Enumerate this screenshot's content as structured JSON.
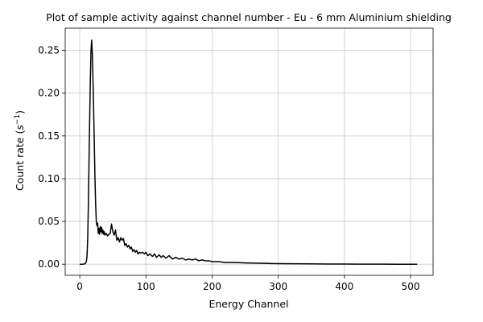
{
  "chart_data": {
    "type": "line",
    "title": "Plot of sample activity against channel number - Eu - 6 mm Aluminium shielding",
    "xlabel": "Energy Channel",
    "ylabel_main": "Count rate (",
    "ylabel_unit": "s",
    "ylabel_exp": "−1",
    "ylabel_end": ")",
    "xlim": [
      -22,
      534
    ],
    "ylim": [
      -0.013,
      0.276
    ],
    "grid": true,
    "x_ticks": [
      0,
      100,
      200,
      300,
      400,
      500
    ],
    "x_tick_labels": [
      "0",
      "100",
      "200",
      "300",
      "400",
      "500"
    ],
    "y_ticks": [
      0.0,
      0.05,
      0.1,
      0.15,
      0.2,
      0.25
    ],
    "y_tick_labels": [
      "0.00",
      "0.05",
      "0.10",
      "0.15",
      "0.20",
      "0.25"
    ],
    "series": [
      {
        "color": "#000000",
        "x": [
          0,
          5,
          8,
          10,
          11,
          12,
          13,
          14,
          15,
          16,
          17,
          18,
          19,
          20,
          21,
          22,
          23,
          24,
          25,
          26,
          27,
          28,
          29,
          30,
          31,
          32,
          33,
          34,
          35,
          36,
          37,
          38,
          40,
          42,
          44,
          46,
          48,
          50,
          52,
          54,
          56,
          58,
          60,
          62,
          64,
          66,
          68,
          70,
          72,
          74,
          76,
          78,
          80,
          82,
          84,
          86,
          88,
          90,
          92,
          95,
          98,
          100,
          103,
          106,
          110,
          113,
          116,
          120,
          123,
          126,
          130,
          135,
          140,
          145,
          150,
          155,
          160,
          165,
          170,
          175,
          180,
          185,
          190,
          195,
          200,
          210,
          220,
          230,
          240,
          250,
          260,
          270,
          280,
          290,
          300,
          320,
          340,
          360,
          380,
          400,
          420,
          440,
          460,
          480,
          500,
          510
        ],
        "y": [
          0.0,
          0.0,
          0.0005,
          0.003,
          0.01,
          0.03,
          0.07,
          0.12,
          0.17,
          0.215,
          0.25,
          0.262,
          0.245,
          0.215,
          0.18,
          0.14,
          0.1,
          0.07,
          0.05,
          0.045,
          0.048,
          0.036,
          0.042,
          0.035,
          0.044,
          0.038,
          0.043,
          0.036,
          0.04,
          0.035,
          0.038,
          0.034,
          0.036,
          0.033,
          0.035,
          0.036,
          0.047,
          0.038,
          0.034,
          0.04,
          0.028,
          0.031,
          0.026,
          0.031,
          0.028,
          0.03,
          0.022,
          0.024,
          0.02,
          0.022,
          0.018,
          0.02,
          0.015,
          0.017,
          0.014,
          0.016,
          0.012,
          0.014,
          0.013,
          0.014,
          0.012,
          0.014,
          0.01,
          0.012,
          0.009,
          0.012,
          0.008,
          0.011,
          0.008,
          0.01,
          0.007,
          0.01,
          0.006,
          0.008,
          0.006,
          0.007,
          0.005,
          0.006,
          0.005,
          0.006,
          0.004,
          0.005,
          0.004,
          0.004,
          0.003,
          0.003,
          0.002,
          0.002,
          0.0018,
          0.0015,
          0.0013,
          0.0011,
          0.001,
          0.0008,
          0.0007,
          0.0005,
          0.0004,
          0.0003,
          0.0002,
          0.0002,
          0.0001,
          0.0001,
          0.0001,
          0.0,
          0.0,
          0.0
        ]
      }
    ]
  }
}
